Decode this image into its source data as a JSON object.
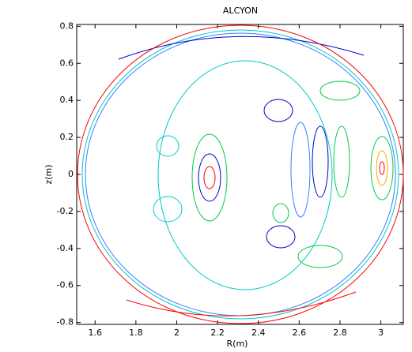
{
  "chart_data": {
    "type": "contour",
    "title": "ALCYON",
    "xlabel": "R(m)",
    "ylabel": "z(m)",
    "xlim": [
      1.51,
      3.11
    ],
    "ylim": [
      -0.81,
      0.81
    ],
    "xticks": [
      1.6,
      1.8,
      2,
      2.2,
      2.4,
      2.6,
      2.8,
      3
    ],
    "yticks": [
      -0.8,
      -0.6,
      -0.4,
      -0.2,
      0,
      0.2,
      0.4,
      0.6,
      0.8
    ],
    "boundary_color": "#ff0000"
  }
}
